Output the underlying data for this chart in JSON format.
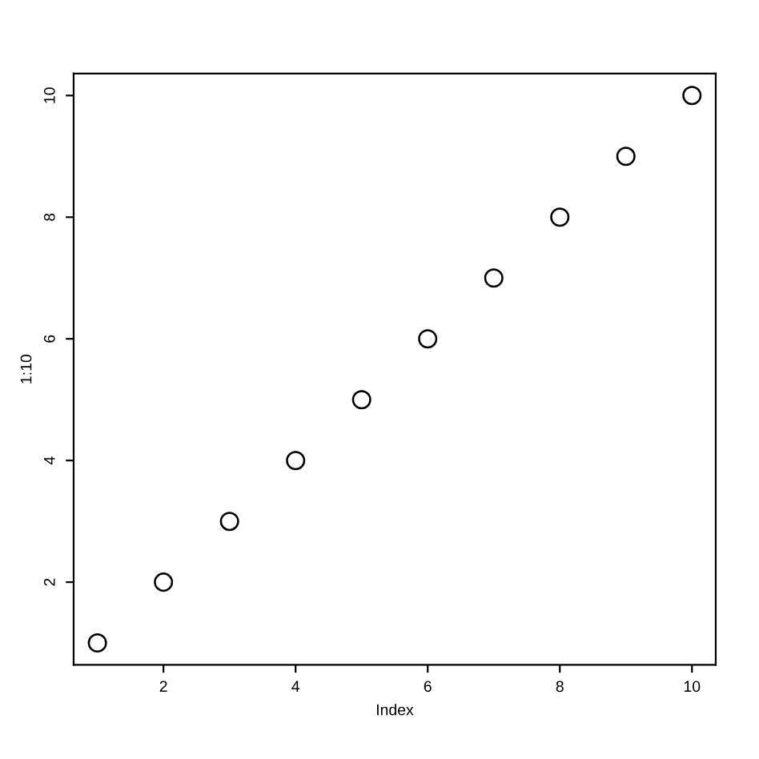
{
  "chart_data": {
    "type": "scatter",
    "xlabel": "Index",
    "ylabel": "1:10",
    "x": [
      1,
      2,
      3,
      4,
      5,
      6,
      7,
      8,
      9,
      10
    ],
    "values": [
      1,
      2,
      3,
      4,
      5,
      6,
      7,
      8,
      9,
      10
    ],
    "color": "#000000",
    "marker": "circle",
    "xlim": [
      0.64,
      10.36
    ],
    "ylim": [
      0.64,
      10.36
    ],
    "xticks": [
      2,
      4,
      6,
      8,
      10
    ],
    "yticks": [
      2,
      4,
      6,
      8,
      10
    ],
    "grid": false,
    "legend": false
  }
}
